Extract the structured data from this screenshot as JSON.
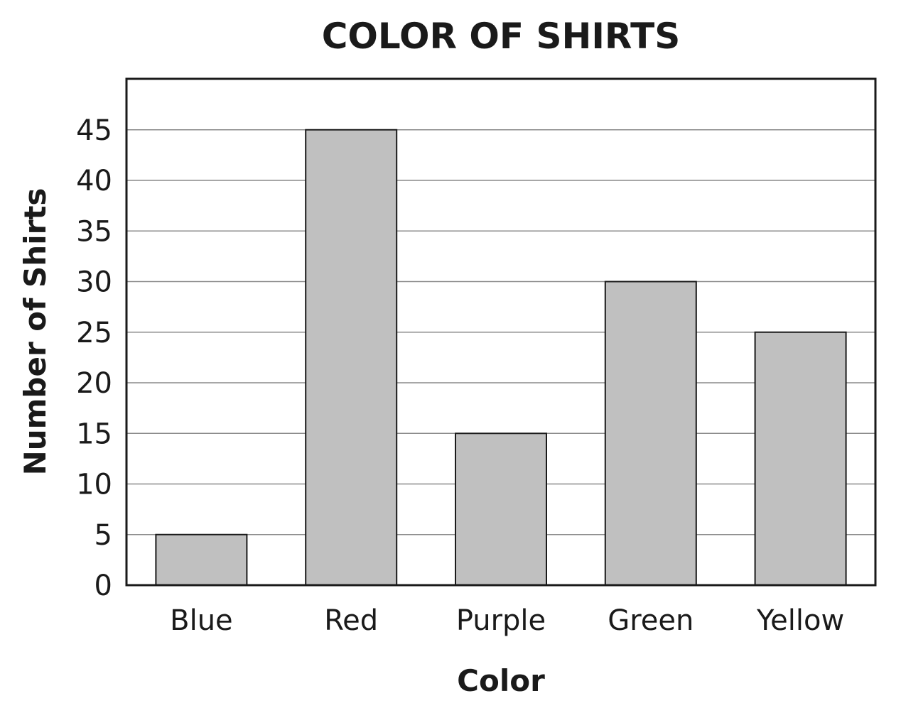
{
  "chart_data": {
    "type": "bar",
    "title": "COLOR OF SHIRTS",
    "xlabel": "Color",
    "ylabel": "Number of Shirts",
    "categories": [
      "Blue",
      "Red",
      "Purple",
      "Green",
      "Yellow"
    ],
    "values": [
      5,
      45,
      15,
      30,
      25
    ],
    "ylim": [
      0,
      50
    ],
    "yticks": [
      0,
      5,
      10,
      15,
      20,
      25,
      30,
      35,
      40,
      45
    ],
    "grid": true,
    "bar_color": "#c0c0c0",
    "text_color": "#1a1a1a"
  }
}
